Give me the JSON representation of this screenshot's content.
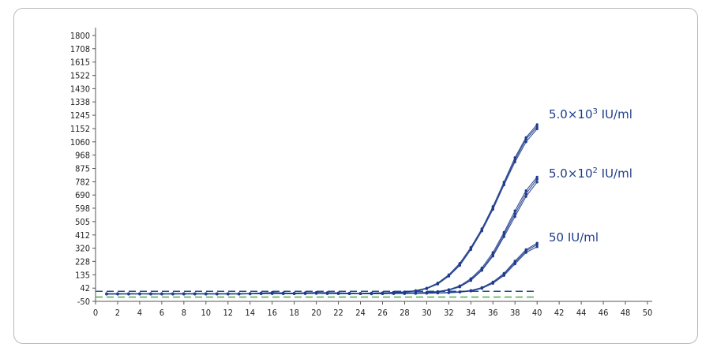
{
  "chart_data": {
    "type": "line",
    "title": "",
    "xlabel": "",
    "ylabel": "",
    "xlim": [
      0,
      50
    ],
    "ylim": [
      -50,
      1800
    ],
    "x_ticks": [
      0,
      2,
      4,
      6,
      8,
      10,
      12,
      14,
      16,
      18,
      20,
      22,
      24,
      26,
      28,
      30,
      32,
      34,
      36,
      38,
      40,
      42,
      44,
      46,
      48,
      50
    ],
    "y_ticks": [
      -50,
      42,
      135,
      228,
      320,
      412,
      505,
      598,
      690,
      782,
      875,
      968,
      1060,
      1152,
      1245,
      1338,
      1430,
      1522,
      1615,
      1708,
      1800
    ],
    "grid": false,
    "threshold_lines": [
      {
        "y": 20,
        "style": "dashed",
        "color": "#2a4d8f"
      },
      {
        "y": -20,
        "style": "dashed",
        "color": "#3aa23a"
      }
    ],
    "series_color": "#1f3d8c",
    "series": [
      {
        "name": "5.0×10³ IU/ml",
        "label_parts": [
          "5.0×10",
          "3",
          " IU/ml"
        ],
        "label_y": 1250,
        "replicates": [
          {
            "x": [
              1,
              2,
              3,
              4,
              5,
              6,
              7,
              8,
              9,
              10,
              11,
              12,
              13,
              14,
              15,
              16,
              17,
              18,
              19,
              20,
              21,
              22,
              23,
              24,
              25,
              26,
              27,
              28,
              29,
              30,
              31,
              32,
              33,
              34,
              35,
              36,
              37,
              38,
              39,
              40
            ],
            "y": [
              2,
              3,
              1,
              2,
              3,
              2,
              1,
              4,
              2,
              3,
              2,
              1,
              3,
              5,
              8,
              10,
              8,
              6,
              9,
              11,
              10,
              8,
              6,
              5,
              7,
              9,
              12,
              14,
              22,
              38,
              70,
              125,
              200,
              310,
              440,
              590,
              760,
              920,
              1060,
              1150
            ]
          },
          {
            "x": [
              1,
              2,
              3,
              4,
              5,
              6,
              7,
              8,
              9,
              10,
              11,
              12,
              13,
              14,
              15,
              16,
              17,
              18,
              19,
              20,
              21,
              22,
              23,
              24,
              25,
              26,
              27,
              28,
              29,
              30,
              31,
              32,
              33,
              34,
              35,
              36,
              37,
              38,
              39,
              40
            ],
            "y": [
              1,
              2,
              2,
              3,
              1,
              2,
              3,
              2,
              4,
              2,
              1,
              3,
              2,
              4,
              6,
              12,
              9,
              5,
              8,
              12,
              9,
              7,
              5,
              6,
              8,
              10,
              11,
              16,
              25,
              42,
              78,
              135,
              215,
              325,
              455,
              610,
              780,
              950,
              1090,
              1180
            ]
          },
          {
            "x": [
              1,
              2,
              3,
              4,
              5,
              6,
              7,
              8,
              9,
              10,
              11,
              12,
              13,
              14,
              15,
              16,
              17,
              18,
              19,
              20,
              21,
              22,
              23,
              24,
              25,
              26,
              27,
              28,
              29,
              30,
              31,
              32,
              33,
              34,
              35,
              36,
              37,
              38,
              39,
              40
            ],
            "y": [
              3,
              1,
              2,
              2,
              2,
              3,
              2,
              1,
              3,
              2,
              3,
              2,
              1,
              3,
              7,
              9,
              7,
              7,
              10,
              10,
              11,
              9,
              7,
              4,
              6,
              8,
              13,
              15,
              23,
              40,
              74,
              130,
              208,
              318,
              448,
              600,
              770,
              935,
              1080,
              1165
            ]
          }
        ]
      },
      {
        "name": "5.0×10² IU/ml",
        "label_parts": [
          "5.0×10",
          "2",
          " IU/ml"
        ],
        "label_y": 840,
        "replicates": [
          {
            "x": [
              1,
              2,
              3,
              4,
              5,
              6,
              7,
              8,
              9,
              10,
              11,
              12,
              13,
              14,
              15,
              16,
              17,
              18,
              19,
              20,
              21,
              22,
              23,
              24,
              25,
              26,
              27,
              28,
              29,
              30,
              31,
              32,
              33,
              34,
              35,
              36,
              37,
              38,
              39,
              40
            ],
            "y": [
              2,
              1,
              3,
              2,
              2,
              1,
              3,
              2,
              2,
              3,
              1,
              2,
              2,
              4,
              5,
              7,
              6,
              4,
              6,
              9,
              8,
              6,
              5,
              3,
              4,
              5,
              7,
              8,
              9,
              11,
              16,
              28,
              50,
              95,
              165,
              265,
              400,
              540,
              680,
              780
            ]
          },
          {
            "x": [
              1,
              2,
              3,
              4,
              5,
              6,
              7,
              8,
              9,
              10,
              11,
              12,
              13,
              14,
              15,
              16,
              17,
              18,
              19,
              20,
              21,
              22,
              23,
              24,
              25,
              26,
              27,
              28,
              29,
              30,
              31,
              32,
              33,
              34,
              35,
              36,
              37,
              38,
              39,
              40
            ],
            "y": [
              1,
              2,
              2,
              3,
              1,
              2,
              2,
              3,
              1,
              2,
              2,
              3,
              2,
              3,
              6,
              8,
              5,
              5,
              7,
              8,
              9,
              5,
              4,
              4,
              5,
              6,
              6,
              9,
              10,
              12,
              18,
              32,
              58,
              108,
              182,
              290,
              430,
              580,
              720,
              815
            ]
          },
          {
            "x": [
              1,
              2,
              3,
              4,
              5,
              6,
              7,
              8,
              9,
              10,
              11,
              12,
              13,
              14,
              15,
              16,
              17,
              18,
              19,
              20,
              21,
              22,
              23,
              24,
              25,
              26,
              27,
              28,
              29,
              30,
              31,
              32,
              33,
              34,
              35,
              36,
              37,
              38,
              39,
              40
            ],
            "y": [
              3,
              2,
              1,
              2,
              3,
              2,
              1,
              2,
              3,
              1,
              2,
              2,
              3,
              3,
              4,
              6,
              7,
              6,
              5,
              7,
              7,
              7,
              6,
              5,
              3,
              4,
              8,
              7,
              8,
              10,
              15,
              30,
              54,
              100,
              172,
              275,
              415,
              560,
              700,
              800
            ]
          }
        ]
      },
      {
        "name": "50 IU/ml",
        "label_parts": [
          "50 IU/ml",
          "",
          ""
        ],
        "label_y": 395,
        "replicates": [
          {
            "x": [
              1,
              2,
              3,
              4,
              5,
              6,
              7,
              8,
              9,
              10,
              11,
              12,
              13,
              14,
              15,
              16,
              17,
              18,
              19,
              20,
              21,
              22,
              23,
              24,
              25,
              26,
              27,
              28,
              29,
              30,
              31,
              32,
              33,
              34,
              35,
              36,
              37,
              38,
              39,
              40
            ],
            "y": [
              1,
              2,
              2,
              1,
              3,
              2,
              2,
              1,
              2,
              2,
              3,
              1,
              2,
              3,
              4,
              5,
              4,
              3,
              5,
              6,
              6,
              4,
              4,
              3,
              3,
              4,
              5,
              5,
              6,
              7,
              8,
              10,
              14,
              22,
              40,
              75,
              130,
              210,
              290,
              330
            ]
          },
          {
            "x": [
              1,
              2,
              3,
              4,
              5,
              6,
              7,
              8,
              9,
              10,
              11,
              12,
              13,
              14,
              15,
              16,
              17,
              18,
              19,
              20,
              21,
              22,
              23,
              24,
              25,
              26,
              27,
              28,
              29,
              30,
              31,
              32,
              33,
              34,
              35,
              36,
              37,
              38,
              39,
              40
            ],
            "y": [
              2,
              1,
              3,
              2,
              1,
              2,
              3,
              2,
              1,
              3,
              2,
              2,
              1,
              2,
              5,
              6,
              3,
              4,
              4,
              5,
              5,
              5,
              3,
              4,
              4,
              3,
              6,
              4,
              7,
              6,
              9,
              12,
              17,
              26,
              46,
              85,
              145,
              230,
              310,
              355
            ]
          },
          {
            "x": [
              1,
              2,
              3,
              4,
              5,
              6,
              7,
              8,
              9,
              10,
              11,
              12,
              13,
              14,
              15,
              16,
              17,
              18,
              19,
              20,
              21,
              22,
              23,
              24,
              25,
              26,
              27,
              28,
              29,
              30,
              31,
              32,
              33,
              34,
              35,
              36,
              37,
              38,
              39,
              40
            ],
            "y": [
              1,
              3,
              2,
              2,
              2,
              1,
              2,
              3,
              2,
              1,
              2,
              3,
              2,
              2,
              3,
              4,
              5,
              3,
              6,
              6,
              4,
              4,
              5,
              4,
              2,
              5,
              4,
              6,
              5,
              8,
              8,
              11,
              15,
              24,
              43,
              80,
              138,
              220,
              300,
              345
            ]
          }
        ]
      }
    ]
  }
}
